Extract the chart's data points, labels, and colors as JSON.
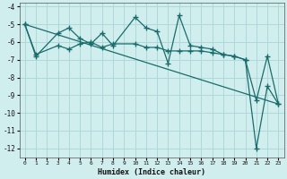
{
  "xlabel": "Humidex (Indice chaleur)",
  "xlim": [
    -0.5,
    23.5
  ],
  "ylim": [
    -12.5,
    -3.8
  ],
  "yticks": [
    -4,
    -5,
    -6,
    -7,
    -8,
    -9,
    -10,
    -11,
    -12
  ],
  "xticks": [
    0,
    1,
    2,
    3,
    4,
    5,
    6,
    7,
    8,
    9,
    10,
    11,
    12,
    13,
    14,
    15,
    16,
    17,
    18,
    19,
    20,
    21,
    22,
    23
  ],
  "bg_color": "#d0eeee",
  "grid_color": "#b0d8d8",
  "line_color": "#1a6b6b",
  "series1_x": [
    0,
    1,
    3,
    4,
    5,
    6,
    7,
    8,
    10,
    11,
    12,
    13,
    14,
    15,
    16,
    17,
    18,
    19,
    20,
    21,
    22,
    23
  ],
  "series1_y": [
    -5.0,
    -6.8,
    -5.5,
    -5.2,
    -5.8,
    -6.1,
    -5.5,
    -6.2,
    -4.6,
    -5.2,
    -5.4,
    -7.2,
    -4.5,
    -6.2,
    -6.3,
    -6.4,
    -6.7,
    -6.8,
    -7.0,
    -12.0,
    -8.5,
    -9.5
  ],
  "series2_x": [
    0,
    1,
    3,
    4,
    5,
    6,
    7,
    8,
    10,
    11,
    12,
    13,
    14,
    15,
    16,
    17,
    18,
    19,
    20,
    21,
    22,
    23
  ],
  "series2_y": [
    -5.0,
    -6.7,
    -6.2,
    -6.4,
    -6.1,
    -6.0,
    -6.3,
    -6.1,
    -6.1,
    -6.3,
    -6.3,
    -6.5,
    -6.5,
    -6.5,
    -6.5,
    -6.6,
    -6.7,
    -6.8,
    -7.0,
    -9.3,
    -6.8,
    -9.5
  ],
  "trend_x": [
    0,
    23
  ],
  "trend_y": [
    -5.0,
    -9.5
  ]
}
